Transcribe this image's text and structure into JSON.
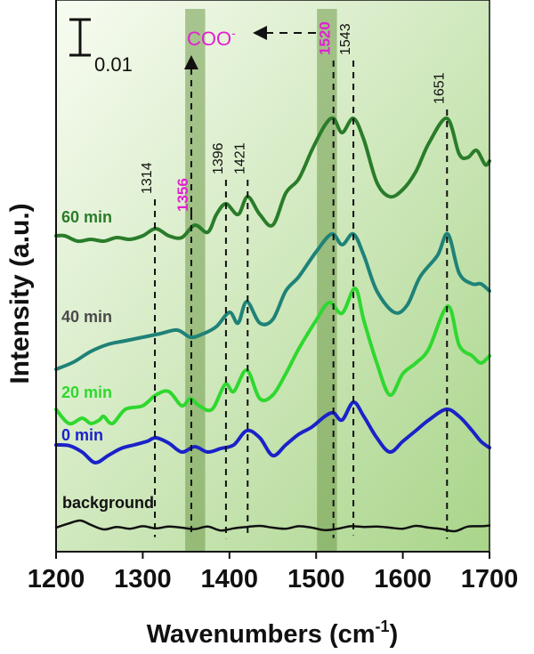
{
  "chart_data": {
    "type": "line",
    "xlabel": "Wavenumbers (cm",
    "xlabel_sup": "-1",
    "xlabel_close": ")",
    "ylabel": "Intensity (a.u.)",
    "xlim": [
      1200,
      1700
    ],
    "x_ticks": [
      1200,
      1300,
      1400,
      1500,
      1600,
      1700
    ],
    "x_tick_labels": [
      "1200",
      "1300",
      "1400",
      "1500",
      "1600",
      "1700"
    ],
    "grid": false,
    "scale_bar_label": "0.01",
    "scale_bar_value": 0.01,
    "band_highlights": [
      {
        "center": 1356,
        "from": 1349,
        "to": 1372
      },
      {
        "center": 1520,
        "from": 1501,
        "to": 1524
      }
    ],
    "coo_label": "COO",
    "coo_sup": "-",
    "series": [
      {
        "name": "background",
        "color": "#111111",
        "x": [
          1200,
          1215,
          1228,
          1240,
          1255,
          1270,
          1285,
          1300,
          1315,
          1330,
          1345,
          1360,
          1375,
          1390,
          1405,
          1420,
          1435,
          1450,
          1465,
          1480,
          1495,
          1510,
          1525,
          1540,
          1555,
          1570,
          1585,
          1600,
          1615,
          1630,
          1645,
          1660,
          1675,
          1690,
          1700
        ],
        "y": [
          0.0,
          0.0012,
          0.002,
          0.0008,
          -0.0005,
          0.0002,
          -0.0003,
          0.0004,
          -0.0002,
          0.0003,
          0.0,
          -0.0004,
          0.0003,
          -0.0008,
          -0.0002,
          0.0002,
          0.0005,
          0.0,
          -0.0003,
          0.0004,
          0.0,
          -0.0007,
          -0.0003,
          0.0004,
          0.0002,
          0.0003,
          0.0,
          -0.0003,
          0.0005,
          0.0,
          -0.0004,
          -0.001,
          0.0003,
          0.0004,
          0.0006
        ]
      },
      {
        "name": "0 min",
        "color": "#1a22c8",
        "x": [
          1200,
          1215,
          1230,
          1245,
          1260,
          1275,
          1290,
          1305,
          1315,
          1330,
          1345,
          1360,
          1375,
          1390,
          1405,
          1420,
          1435,
          1450,
          1465,
          1480,
          1495,
          1510,
          1520,
          1530,
          1543,
          1555,
          1570,
          1585,
          1600,
          1615,
          1630,
          1650,
          1665,
          1680,
          1690,
          1700
        ],
        "y": [
          0.0,
          -0.0002,
          -0.002,
          -0.005,
          -0.003,
          -0.001,
          0.0,
          0.001,
          0.002,
          0.0005,
          -0.002,
          -0.0005,
          -0.002,
          -0.001,
          0.0,
          0.004,
          0.002,
          -0.003,
          0.0,
          0.003,
          0.005,
          0.008,
          0.009,
          0.007,
          0.012,
          0.008,
          0.002,
          -0.002,
          0.001,
          0.004,
          0.007,
          0.01,
          0.008,
          0.004,
          0.001,
          -0.0008
        ]
      },
      {
        "name": "20 min",
        "color": "#2fd82f",
        "x": [
          1200,
          1215,
          1230,
          1240,
          1250,
          1255,
          1265,
          1280,
          1300,
          1315,
          1330,
          1345,
          1355,
          1365,
          1380,
          1395,
          1405,
          1420,
          1435,
          1450,
          1465,
          1480,
          1500,
          1515,
          1530,
          1545,
          1555,
          1570,
          1585,
          1600,
          1615,
          1630,
          1652,
          1665,
          1680,
          1690,
          1700
        ],
        "y": [
          0.0,
          -0.004,
          -0.0025,
          -0.004,
          -0.003,
          -0.002,
          -0.004,
          0.0,
          0.001,
          0.004,
          0.005,
          0.001,
          0.003,
          0.001,
          0.0,
          0.007,
          0.005,
          0.011,
          0.003,
          0.004,
          0.01,
          0.017,
          0.025,
          0.03,
          0.027,
          0.034,
          0.025,
          0.013,
          0.004,
          0.01,
          0.013,
          0.017,
          0.029,
          0.018,
          0.015,
          0.013,
          0.015
        ]
      },
      {
        "name": "40 min",
        "color": "#1f8278",
        "x": [
          1200,
          1220,
          1240,
          1260,
          1280,
          1300,
          1320,
          1340,
          1355,
          1370,
          1385,
          1400,
          1410,
          1420,
          1435,
          1450,
          1465,
          1480,
          1500,
          1518,
          1530,
          1543,
          1555,
          1570,
          1590,
          1605,
          1620,
          1640,
          1652,
          1665,
          1680,
          1690,
          1700
        ],
        "y": [
          0.0,
          0.002,
          0.005,
          0.007,
          0.008,
          0.009,
          0.01,
          0.011,
          0.009,
          0.01,
          0.012,
          0.016,
          0.013,
          0.019,
          0.013,
          0.014,
          0.022,
          0.026,
          0.033,
          0.038,
          0.035,
          0.038,
          0.032,
          0.022,
          0.016,
          0.018,
          0.026,
          0.032,
          0.038,
          0.027,
          0.024,
          0.024,
          0.022
        ]
      },
      {
        "name": "60 min",
        "color": "#2a7c2a",
        "x": [
          1200,
          1210,
          1225,
          1240,
          1255,
          1270,
          1285,
          1300,
          1315,
          1330,
          1345,
          1360,
          1375,
          1385,
          1396,
          1410,
          1421,
          1435,
          1450,
          1465,
          1480,
          1495,
          1510,
          1520,
          1530,
          1543,
          1555,
          1570,
          1585,
          1600,
          1615,
          1630,
          1651,
          1665,
          1675,
          1685,
          1695,
          1700
        ],
        "y": [
          0.0,
          0.0,
          -0.0015,
          -0.001,
          -0.0015,
          -0.0005,
          -0.001,
          0.0,
          0.002,
          0.0,
          -0.0005,
          0.003,
          0.001,
          0.006,
          0.009,
          0.006,
          0.011,
          0.006,
          0.003,
          0.012,
          0.016,
          0.024,
          0.031,
          0.033,
          0.029,
          0.033,
          0.027,
          0.015,
          0.011,
          0.013,
          0.018,
          0.026,
          0.033,
          0.023,
          0.022,
          0.024,
          0.02,
          0.021
        ]
      }
    ],
    "series_labels": [
      {
        "series": "60 min",
        "text": "60 min",
        "color": "#2a7c2a"
      },
      {
        "series": "40 min",
        "text": "40 min",
        "color": "#4a4a4a"
      },
      {
        "series": "20 min",
        "text": "20 min",
        "color": "#2fd82f"
      },
      {
        "series": "0 min",
        "text": "0 min",
        "color": "#1a22c8"
      },
      {
        "series": "background",
        "text": "background",
        "color": "#111111"
      }
    ],
    "peaks": [
      {
        "x": 1314,
        "label": "1314",
        "color": "#111111",
        "line_bottom_series": "background"
      },
      {
        "x": 1356,
        "label": "1356",
        "color": "#e020d0",
        "line_bottom_series": "background"
      },
      {
        "x": 1396,
        "label": "1396",
        "color": "#111111",
        "line_bottom_series": "background"
      },
      {
        "x": 1421,
        "label": "1421",
        "color": "#111111",
        "line_bottom_series": "background"
      },
      {
        "x": 1520,
        "label": "1520",
        "color": "#e020d0",
        "line_bottom_series": "background"
      },
      {
        "x": 1543,
        "label": "1543",
        "color": "#111111",
        "line_bottom_series": "background"
      },
      {
        "x": 1651,
        "label": "1651",
        "color": "#111111",
        "line_bottom_series": "background"
      }
    ],
    "colors": {
      "plot_bg_top": "#f8fcf2",
      "plot_bg_bottom": "#a9d58a",
      "band": "#6f9a4a",
      "magenta": "#e020d0"
    }
  }
}
